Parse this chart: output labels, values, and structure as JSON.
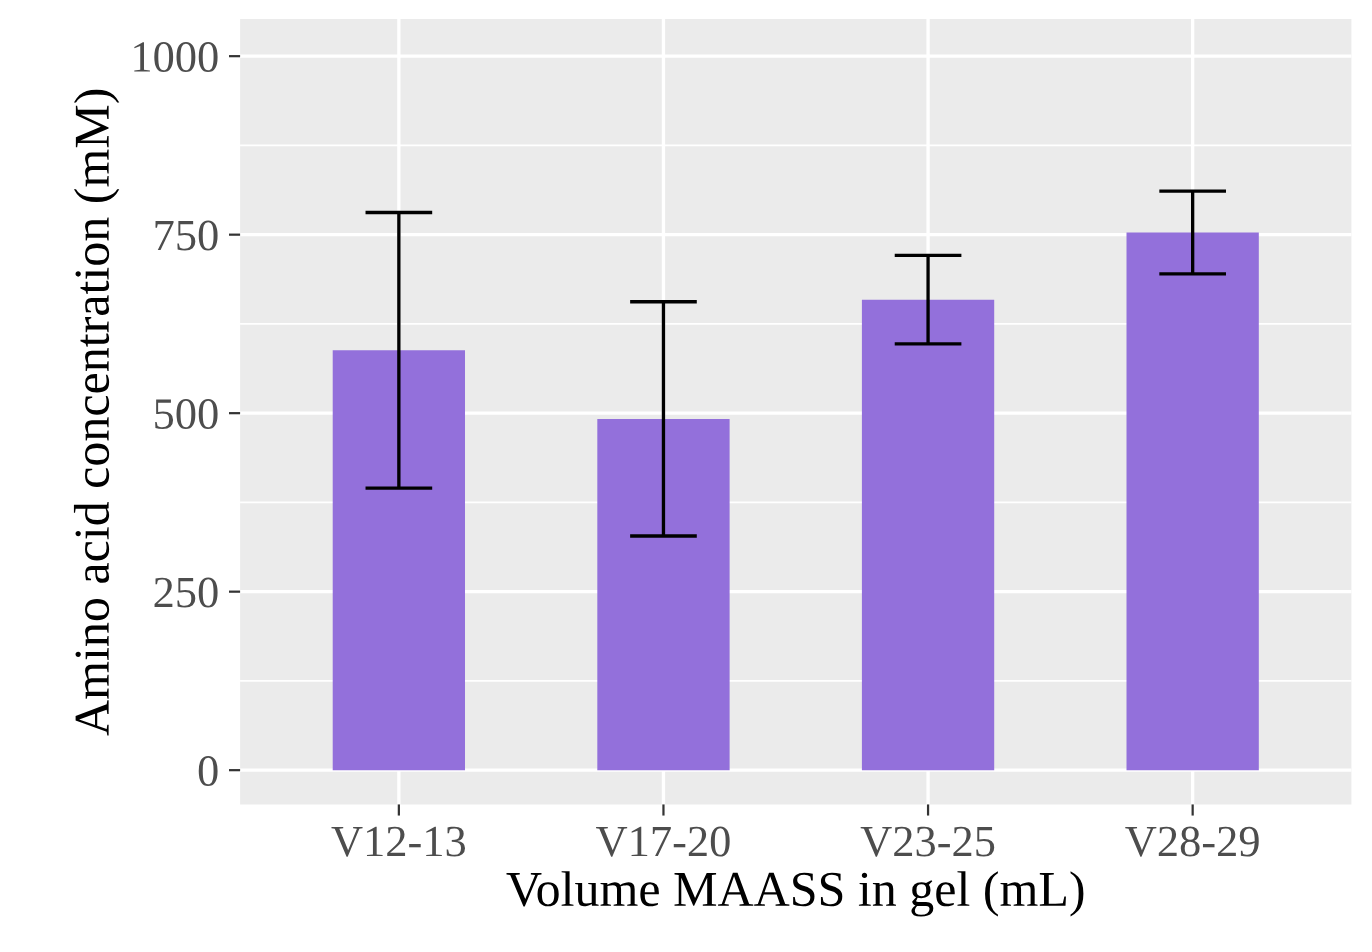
{
  "chart_data": {
    "type": "bar",
    "xlabel": "Volume MAASS in gel (mL)",
    "ylabel": "Amino acid concentration (mM)",
    "categories": [
      "V12-13",
      "V17-20",
      "V23-25",
      "V28-29"
    ],
    "values": [
      588,
      492,
      659,
      753
    ],
    "errors": [
      193,
      164,
      62,
      58
    ],
    "color": "#9370db",
    "ylim": [
      -48,
      1052
    ],
    "yticks": [
      0,
      250,
      500,
      750,
      1000
    ],
    "grid": true
  }
}
